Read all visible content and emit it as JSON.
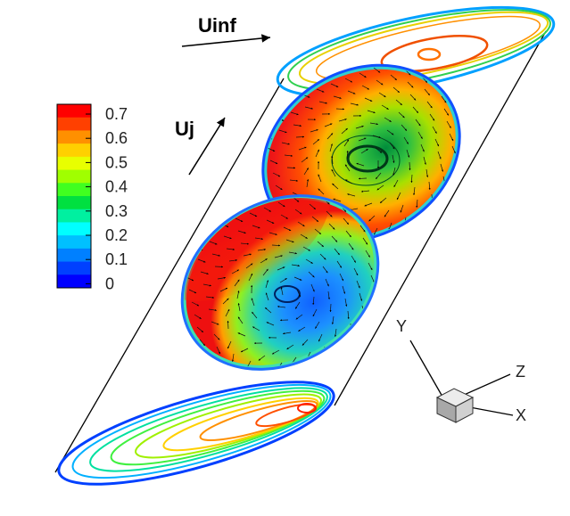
{
  "figure": {
    "freestream_label": "Uinf",
    "jet_label": "Uj"
  },
  "legend": {
    "ticks": [
      "0.7",
      "0.6",
      "0.5",
      "0.4",
      "0.3",
      "0.2",
      "0.1",
      "0"
    ],
    "colors": [
      "#ff0000",
      "#ff4000",
      "#ff9000",
      "#ffd000",
      "#e8ff00",
      "#a0ff00",
      "#40ff20",
      "#00e040",
      "#00f0a0",
      "#00ffff",
      "#00c0ff",
      "#0080ff",
      "#0040ff",
      "#0000ff"
    ]
  },
  "axes_triad": {
    "x": "X",
    "y": "Y",
    "z": "Z"
  }
}
